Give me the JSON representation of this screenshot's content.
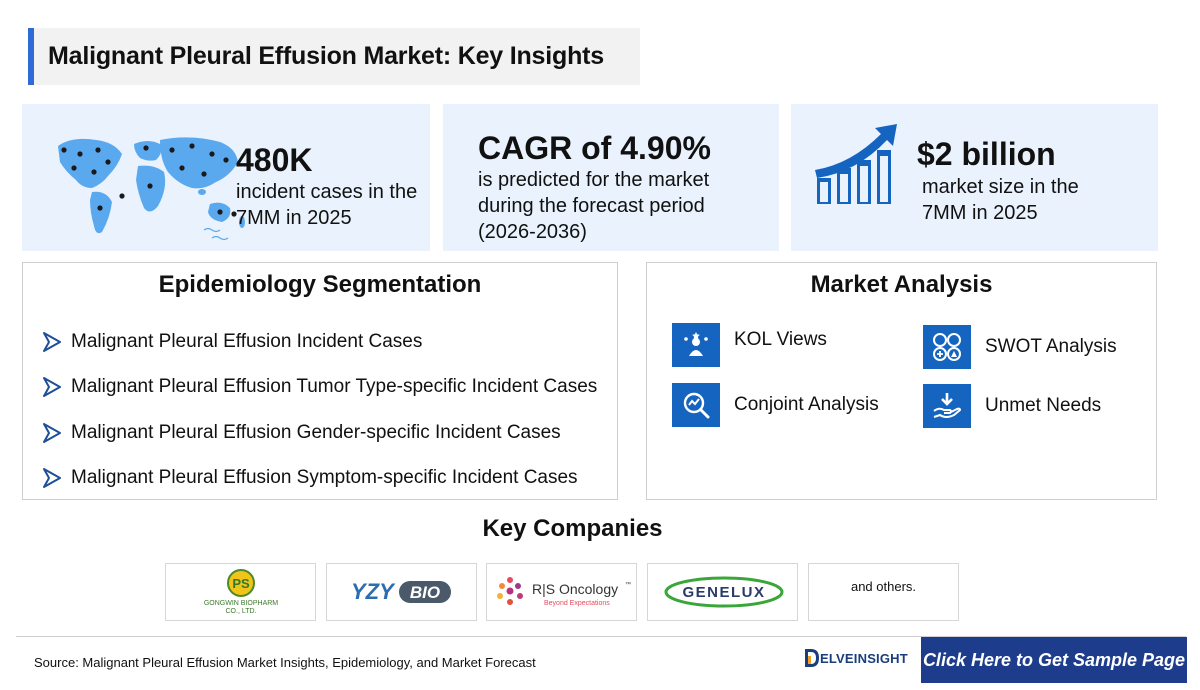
{
  "title": "Malignant Pleural Effusion Market: Key Insights",
  "stats": [
    {
      "value": "480K",
      "lines": [
        "incident cases in the",
        "7MM in 2025"
      ],
      "icon": "world-map-icon"
    },
    {
      "value": "CAGR of 4.90%",
      "lines": [
        "is predicted for the market",
        "during the forecast period",
        "(2026-2036)"
      ]
    },
    {
      "value": "$2 billion",
      "lines": [
        "market size in the",
        "7MM in 2025"
      ],
      "icon": "growth-chart-icon"
    }
  ],
  "epidemiology": {
    "heading": "Epidemiology Segmentation",
    "items": [
      "Malignant Pleural Effusion Incident Cases",
      "Malignant Pleural Effusion Tumor Type-specific Incident Cases",
      "Malignant Pleural Effusion Gender-specific Incident Cases",
      "Malignant Pleural Effusion Symptom-specific Incident Cases"
    ]
  },
  "market_analysis": {
    "heading": "Market Analysis",
    "items": [
      {
        "label": "KOL Views",
        "icon": "kol-views-icon"
      },
      {
        "label": "SWOT Analysis",
        "icon": "swot-icon"
      },
      {
        "label": "Conjoint Analysis",
        "icon": "conjoint-analysis-icon"
      },
      {
        "label": "Unmet Needs",
        "icon": "unmet-needs-icon"
      }
    ]
  },
  "key_companies": {
    "heading": "Key Companies",
    "logos": [
      {
        "name": "GONGWIN BIOPHARM CO., LTD.",
        "line1": "GONGWIN BIOPHARM",
        "line2": "CO., LTD.",
        "mark": "PS"
      },
      {
        "name": "YZYBIO",
        "part1": "YZY",
        "part2": "BIO"
      },
      {
        "name": "R|S Oncology",
        "text": "R|S Oncology",
        "tm": "™",
        "tagline": "Beyond Expectations"
      },
      {
        "name": "GENELUX",
        "text": "GENELUX"
      }
    ],
    "others": "and others."
  },
  "footer": {
    "source": "Source: Malignant Pleural Effusion Market Insights, Epidemiology, and Market Forecast",
    "brand": "ELVEINSIGHT",
    "brand_initial": "D",
    "cta": "Click Here to Get Sample Page"
  },
  "colors": {
    "accent": "#2f6bd6",
    "icon_blue": "#1565c0",
    "stat_bg": "#e9f2fd",
    "cta_bg": "#1d3c8c"
  }
}
